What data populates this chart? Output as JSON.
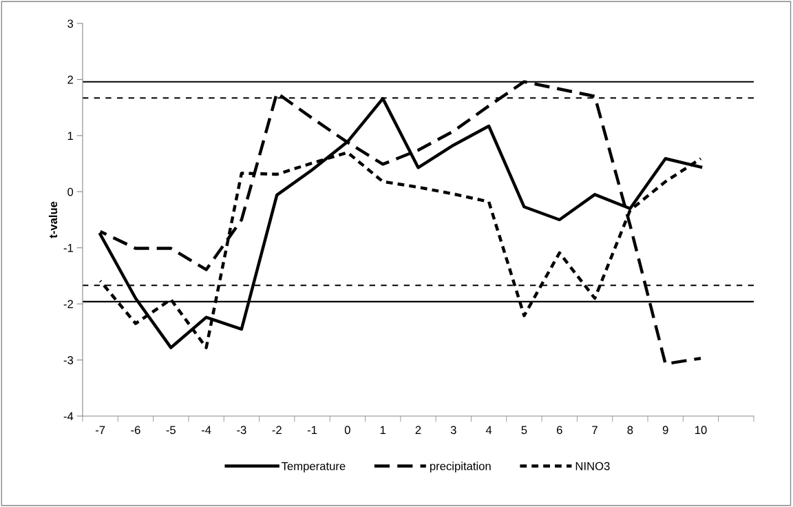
{
  "chart_data": {
    "type": "line",
    "ylabel": "t-value",
    "categories": [
      "-7",
      "-6",
      "-5",
      "-4",
      "-3",
      "-2",
      "-1",
      "0",
      "1",
      "2",
      "3",
      "4",
      "5",
      "6",
      "7",
      "8",
      "9",
      "10"
    ],
    "series": [
      {
        "name": "Temperature",
        "color": "#000000",
        "line_style": "solid",
        "values": [
          -0.76,
          -1.9,
          -2.78,
          -2.24,
          -2.45,
          -0.06,
          0.39,
          0.89,
          1.66,
          0.43,
          0.83,
          1.17,
          -0.27,
          -0.5,
          -0.05,
          -0.3,
          0.59,
          0.44
        ]
      },
      {
        "name": "precipitation",
        "color": "#000000",
        "line_style": "dashed",
        "values": [
          -0.71,
          -1.01,
          -1.01,
          -1.39,
          -0.5,
          1.76,
          1.31,
          0.88,
          0.49,
          0.74,
          1.08,
          1.53,
          1.96,
          1.83,
          1.7,
          -0.6,
          -3.07,
          -2.97
        ]
      },
      {
        "name": "NINO3",
        "color": "#000000",
        "line_style": "dotted",
        "values": [
          -1.59,
          -2.35,
          -1.92,
          -2.78,
          0.33,
          0.31,
          0.51,
          0.7,
          0.18,
          0.08,
          -0.04,
          -0.18,
          -2.21,
          -1.09,
          -1.9,
          -0.33,
          0.18,
          0.59
        ]
      }
    ],
    "ylim": [
      -4,
      3
    ],
    "yticks": [
      -4,
      -3,
      -2,
      -1,
      0,
      1,
      2,
      3
    ],
    "ref_lines": [
      {
        "axis": "y",
        "value": 1.96,
        "color": "#000000",
        "line_style": "solid"
      },
      {
        "axis": "y",
        "value": 1.67,
        "color": "#000000",
        "line_style": "dotted"
      },
      {
        "axis": "y",
        "value": -1.67,
        "color": "#000000",
        "line_style": "dotted"
      },
      {
        "axis": "y",
        "value": -1.96,
        "color": "#000000",
        "line_style": "solid"
      }
    ],
    "grid": false,
    "legend": "bottom",
    "marker": "none"
  }
}
